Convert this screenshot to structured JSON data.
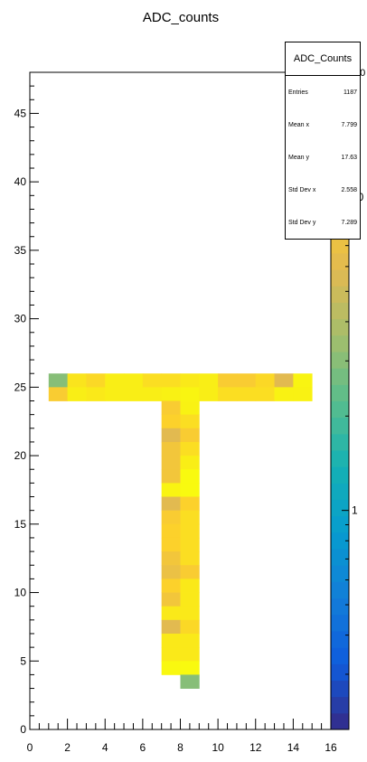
{
  "chart_data": {
    "type": "heatmap",
    "title": "ADC_counts",
    "xlabel": "",
    "ylabel": "",
    "xlim": [
      0,
      16
    ],
    "ylim": [
      0,
      48
    ],
    "x_ticks": [
      0,
      2,
      4,
      6,
      8,
      10,
      12,
      14,
      16
    ],
    "y_ticks": [
      0,
      5,
      10,
      15,
      20,
      25,
      30,
      35,
      40,
      45
    ],
    "z_scale": "log",
    "z_range": [
      0.2,
      25
    ],
    "z_ticks": [
      1,
      10
    ],
    "colorbar_corner_label": "10",
    "bin_width": [
      1,
      1
    ],
    "cells": [
      [
        1,
        25,
        3
      ],
      [
        2,
        25,
        13
      ],
      [
        3,
        25,
        11
      ],
      [
        4,
        25,
        15
      ],
      [
        5,
        25,
        15
      ],
      [
        6,
        25,
        12
      ],
      [
        7,
        25,
        12
      ],
      [
        8,
        25,
        14
      ],
      [
        9,
        25,
        15
      ],
      [
        10,
        25,
        9
      ],
      [
        11,
        25,
        9
      ],
      [
        12,
        25,
        11
      ],
      [
        13,
        25,
        6
      ],
      [
        14,
        25,
        18
      ],
      [
        1,
        24,
        9
      ],
      [
        2,
        24,
        15
      ],
      [
        3,
        24,
        14
      ],
      [
        4,
        24,
        15
      ],
      [
        5,
        24,
        15
      ],
      [
        6,
        24,
        15
      ],
      [
        7,
        24,
        16
      ],
      [
        8,
        24,
        19
      ],
      [
        9,
        24,
        15
      ],
      [
        10,
        24,
        12
      ],
      [
        11,
        24,
        12
      ],
      [
        12,
        24,
        12
      ],
      [
        13,
        24,
        17
      ],
      [
        14,
        24,
        17
      ],
      [
        7,
        23,
        9
      ],
      [
        8,
        23,
        17
      ],
      [
        7,
        22,
        10
      ],
      [
        8,
        22,
        12
      ],
      [
        7,
        21,
        6
      ],
      [
        8,
        21,
        9
      ],
      [
        7,
        20,
        8
      ],
      [
        8,
        20,
        12
      ],
      [
        7,
        19,
        8
      ],
      [
        8,
        19,
        15
      ],
      [
        7,
        18,
        8
      ],
      [
        8,
        18,
        24
      ],
      [
        7,
        17,
        18
      ],
      [
        8,
        17,
        24
      ],
      [
        7,
        16,
        6
      ],
      [
        8,
        16,
        10
      ],
      [
        7,
        15,
        9
      ],
      [
        8,
        15,
        12
      ],
      [
        7,
        14,
        10
      ],
      [
        8,
        14,
        12
      ],
      [
        7,
        13,
        10
      ],
      [
        8,
        13,
        12
      ],
      [
        7,
        12,
        8
      ],
      [
        8,
        12,
        12
      ],
      [
        7,
        11,
        7
      ],
      [
        8,
        11,
        9
      ],
      [
        7,
        10,
        10
      ],
      [
        8,
        10,
        14
      ],
      [
        7,
        9,
        8
      ],
      [
        8,
        9,
        14
      ],
      [
        7,
        8,
        14
      ],
      [
        8,
        8,
        14
      ],
      [
        7,
        7,
        6
      ],
      [
        8,
        7,
        11
      ],
      [
        7,
        6,
        14
      ],
      [
        8,
        6,
        14
      ],
      [
        7,
        5,
        14
      ],
      [
        8,
        5,
        14
      ],
      [
        7,
        4,
        22
      ],
      [
        8,
        4,
        24
      ],
      [
        8,
        3,
        3
      ]
    ]
  },
  "stats": {
    "title": "ADC_Counts",
    "rows": [
      {
        "label": "Entries",
        "value": "1187"
      },
      {
        "label": "Mean x",
        "value": "7.799"
      },
      {
        "label": "Mean y",
        "value": "17.63"
      },
      {
        "label": "Std Dev x",
        "value": "2.558"
      },
      {
        "label": "Std Dev y",
        "value": "7.289"
      }
    ]
  }
}
